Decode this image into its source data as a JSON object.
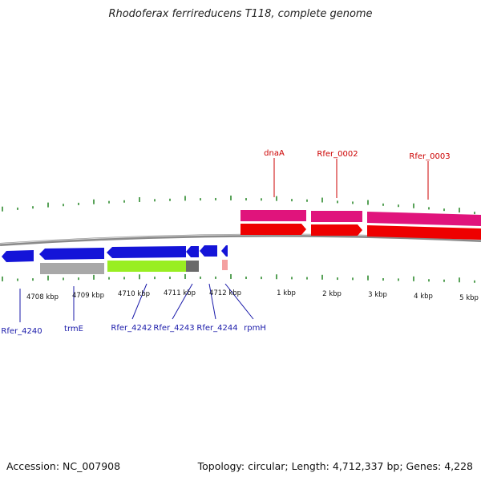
{
  "header": {
    "title": "Rhodoferax ferrireducens T118, complete genome"
  },
  "footer": {
    "accession": "Accession: NC_007908",
    "summary": "Topology: circular; Length: 4,712,337 bp; Genes: 4,228"
  },
  "colors": {
    "backbone": "#8a8a8a",
    "tick": "#2e8b2e",
    "forward_gene": "#ee0000",
    "forward_cds": "#e0147c",
    "reverse_gene": "#1414d8",
    "reverse_cds_gray": "#a8a8a8",
    "reverse_cds_green": "#99ee22",
    "reverse_cds_dark": "#6a6a6a",
    "reverse_cds_pink": "#f4a0a0",
    "label_forward": "#cc0000",
    "label_reverse": "#1a1aaa",
    "scale_text": "#111111"
  },
  "scale_labels": [
    {
      "name": "scale-label-4708",
      "text": "4708 kbp"
    },
    {
      "name": "scale-label-4709",
      "text": "4709 kbp"
    },
    {
      "name": "scale-label-4710",
      "text": "4710 kbp"
    },
    {
      "name": "scale-label-4711",
      "text": "4711 kbp"
    },
    {
      "name": "scale-label-4712",
      "text": "4712 kbp"
    },
    {
      "name": "scale-label-1",
      "text": "1 kbp"
    },
    {
      "name": "scale-label-2",
      "text": "2 kbp"
    },
    {
      "name": "scale-label-3",
      "text": "3 kbp"
    },
    {
      "name": "scale-label-4",
      "text": "4 kbp"
    },
    {
      "name": "scale-label-5",
      "text": "5 kbp"
    }
  ],
  "forward_labels": [
    {
      "name": "gene-label-dnaA",
      "text": "dnaA"
    },
    {
      "name": "gene-label-Rfer_0002",
      "text": "Rfer_0002"
    },
    {
      "name": "gene-label-Rfer_0003",
      "text": "Rfer_0003"
    }
  ],
  "reverse_labels": [
    {
      "name": "gene-label-Rfer_4240",
      "text": "Rfer_4240"
    },
    {
      "name": "gene-label-trmE",
      "text": "trmE"
    },
    {
      "name": "gene-label-Rfer_4242",
      "text": "Rfer_4242"
    },
    {
      "name": "gene-label-Rfer_4243",
      "text": "Rfer_4243"
    },
    {
      "name": "gene-label-Rfer_4244",
      "text": "Rfer_4244"
    },
    {
      "name": "gene-label-rpmH",
      "text": "rpmH"
    }
  ]
}
